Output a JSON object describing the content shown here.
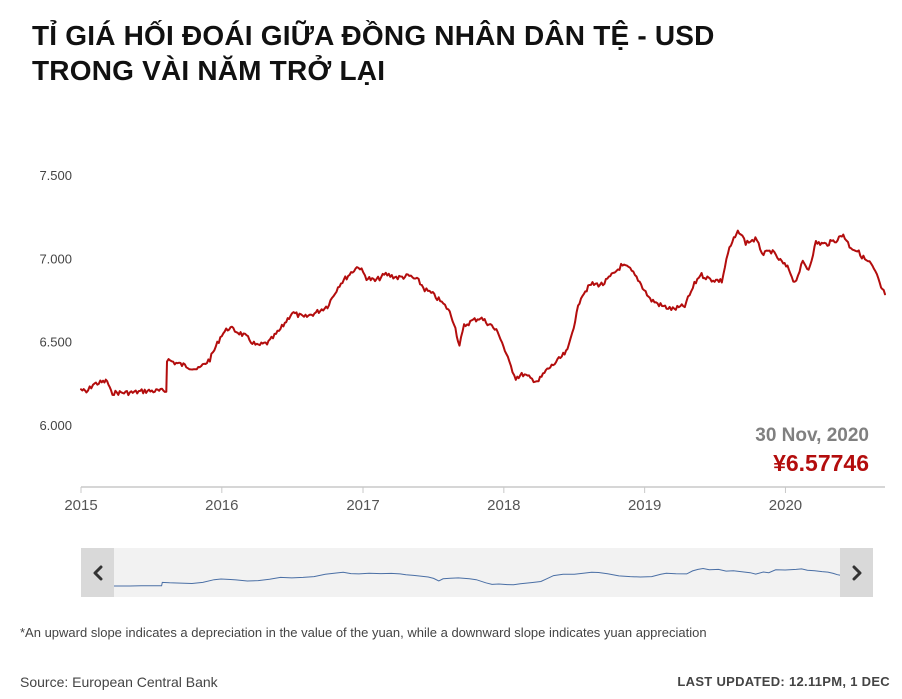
{
  "title": {
    "line1": "TỈ GIÁ HỐI ĐOÁI GIỮA ĐỒNG NHÂN DÂN TỆ - USD",
    "line2": "TRONG VÀI NĂM TRỞ LẠI"
  },
  "readout": {
    "date": "30 Nov, 2020",
    "value": "¥6.57746"
  },
  "footnote": "*An upward slope indicates a depreciation in the value of the yuan, while a downward slope indicates yuan appreciation",
  "source": "Source: European Central Bank",
  "last_updated": "LAST UPDATED: 12.11PM, 1 DEC",
  "colors": {
    "line": "#b30d0d",
    "navigator_line": "#4a6fa5",
    "navigator_button": "#d9d9d9",
    "navigator_bg": "#f2f2f2",
    "readout_date": "#808080",
    "readout_value": "#b30d0d"
  },
  "icons": {
    "nav_left": "chevron-left-icon",
    "nav_right": "chevron-right-icon"
  },
  "chart_data": {
    "type": "line",
    "title": "TỈ GIÁ HỐI ĐOÁI GIỮA ĐỒNG NHÂN DÂN TỆ - USD TRONG VÀI NĂM TRỞ LẠI",
    "xlabel": "",
    "ylabel": "",
    "ylim": [
      6.0,
      7.5
    ],
    "yticks": [
      "6.000",
      "6.500",
      "7.000",
      "7.500"
    ],
    "xticks": [
      "2015",
      "2016",
      "2017",
      "2018",
      "2019",
      "2020"
    ],
    "xlim": [
      "2015-01-01",
      "2020-09-15"
    ],
    "grid": false,
    "legend": "none",
    "series": [
      {
        "name": "",
        "points": [
          [
            "2015-01-01",
            6.22
          ],
          [
            "2015-01-15",
            6.2
          ],
          [
            "2015-02-01",
            6.25
          ],
          [
            "2015-02-20",
            6.26
          ],
          [
            "2015-03-10",
            6.27
          ],
          [
            "2015-03-20",
            6.2
          ],
          [
            "2015-04-15",
            6.2
          ],
          [
            "2015-05-15",
            6.2
          ],
          [
            "2015-06-15",
            6.21
          ],
          [
            "2015-07-15",
            6.21
          ],
          [
            "2015-08-10",
            6.21
          ],
          [
            "2015-08-12",
            6.4
          ],
          [
            "2015-09-01",
            6.38
          ],
          [
            "2015-10-01",
            6.36
          ],
          [
            "2015-11-01",
            6.34
          ],
          [
            "2015-12-01",
            6.4
          ],
          [
            "2016-01-01",
            6.55
          ],
          [
            "2016-01-20",
            6.59
          ],
          [
            "2016-02-15",
            6.56
          ],
          [
            "2016-03-01",
            6.54
          ],
          [
            "2016-04-01",
            6.48
          ],
          [
            "2016-05-01",
            6.5
          ],
          [
            "2016-06-01",
            6.58
          ],
          [
            "2016-07-01",
            6.68
          ],
          [
            "2016-08-01",
            6.65
          ],
          [
            "2016-09-01",
            6.68
          ],
          [
            "2016-10-01",
            6.72
          ],
          [
            "2016-11-01",
            6.85
          ],
          [
            "2016-12-01",
            6.92
          ],
          [
            "2016-12-20",
            6.96
          ],
          [
            "2017-01-10",
            6.89
          ],
          [
            "2017-02-01",
            6.87
          ],
          [
            "2017-03-01",
            6.91
          ],
          [
            "2017-04-01",
            6.89
          ],
          [
            "2017-05-01",
            6.9
          ],
          [
            "2017-05-25",
            6.87
          ],
          [
            "2017-06-10",
            6.82
          ],
          [
            "2017-07-01",
            6.79
          ],
          [
            "2017-07-20",
            6.75
          ],
          [
            "2017-08-10",
            6.7
          ],
          [
            "2017-08-25",
            6.62
          ],
          [
            "2017-09-08",
            6.48
          ],
          [
            "2017-09-20",
            6.6
          ],
          [
            "2017-10-10",
            6.63
          ],
          [
            "2017-11-01",
            6.65
          ],
          [
            "2017-12-01",
            6.6
          ],
          [
            "2017-12-20",
            6.55
          ],
          [
            "2018-01-15",
            6.38
          ],
          [
            "2018-02-01",
            6.29
          ],
          [
            "2018-02-20",
            6.31
          ],
          [
            "2018-03-15",
            6.28
          ],
          [
            "2018-04-01",
            6.27
          ],
          [
            "2018-04-20",
            6.33
          ],
          [
            "2018-05-20",
            6.39
          ],
          [
            "2018-06-15",
            6.45
          ],
          [
            "2018-07-01",
            6.6
          ],
          [
            "2018-07-20",
            6.78
          ],
          [
            "2018-08-15",
            6.85
          ],
          [
            "2018-09-15",
            6.85
          ],
          [
            "2018-10-15",
            6.92
          ],
          [
            "2018-11-01",
            6.96
          ],
          [
            "2018-11-20",
            6.95
          ],
          [
            "2018-12-15",
            6.88
          ],
          [
            "2019-01-15",
            6.76
          ],
          [
            "2019-02-15",
            6.72
          ],
          [
            "2019-03-15",
            6.7
          ],
          [
            "2019-04-15",
            6.72
          ],
          [
            "2019-05-10",
            6.85
          ],
          [
            "2019-05-25",
            6.91
          ],
          [
            "2019-06-20",
            6.88
          ],
          [
            "2019-07-20",
            6.87
          ],
          [
            "2019-08-05",
            7.04
          ],
          [
            "2019-08-20",
            7.12
          ],
          [
            "2019-09-03",
            7.17
          ],
          [
            "2019-09-20",
            7.1
          ],
          [
            "2019-10-15",
            7.12
          ],
          [
            "2019-11-05",
            7.03
          ],
          [
            "2019-11-25",
            7.05
          ],
          [
            "2019-12-15",
            7.0
          ],
          [
            "2020-01-10",
            6.94
          ],
          [
            "2020-01-25",
            6.86
          ],
          [
            "2020-02-15",
            6.98
          ],
          [
            "2020-03-01",
            6.94
          ],
          [
            "2020-03-20",
            7.1
          ],
          [
            "2020-04-15",
            7.09
          ],
          [
            "2020-05-15",
            7.12
          ],
          [
            "2020-05-30",
            7.15
          ],
          [
            "2020-06-15",
            7.08
          ],
          [
            "2020-07-05",
            7.05
          ],
          [
            "2020-07-25",
            7.0
          ],
          [
            "2020-08-10",
            6.97
          ],
          [
            "2020-08-25",
            6.9
          ],
          [
            "2020-09-05",
            6.83
          ],
          [
            "2020-09-15",
            6.79
          ]
        ]
      }
    ]
  }
}
